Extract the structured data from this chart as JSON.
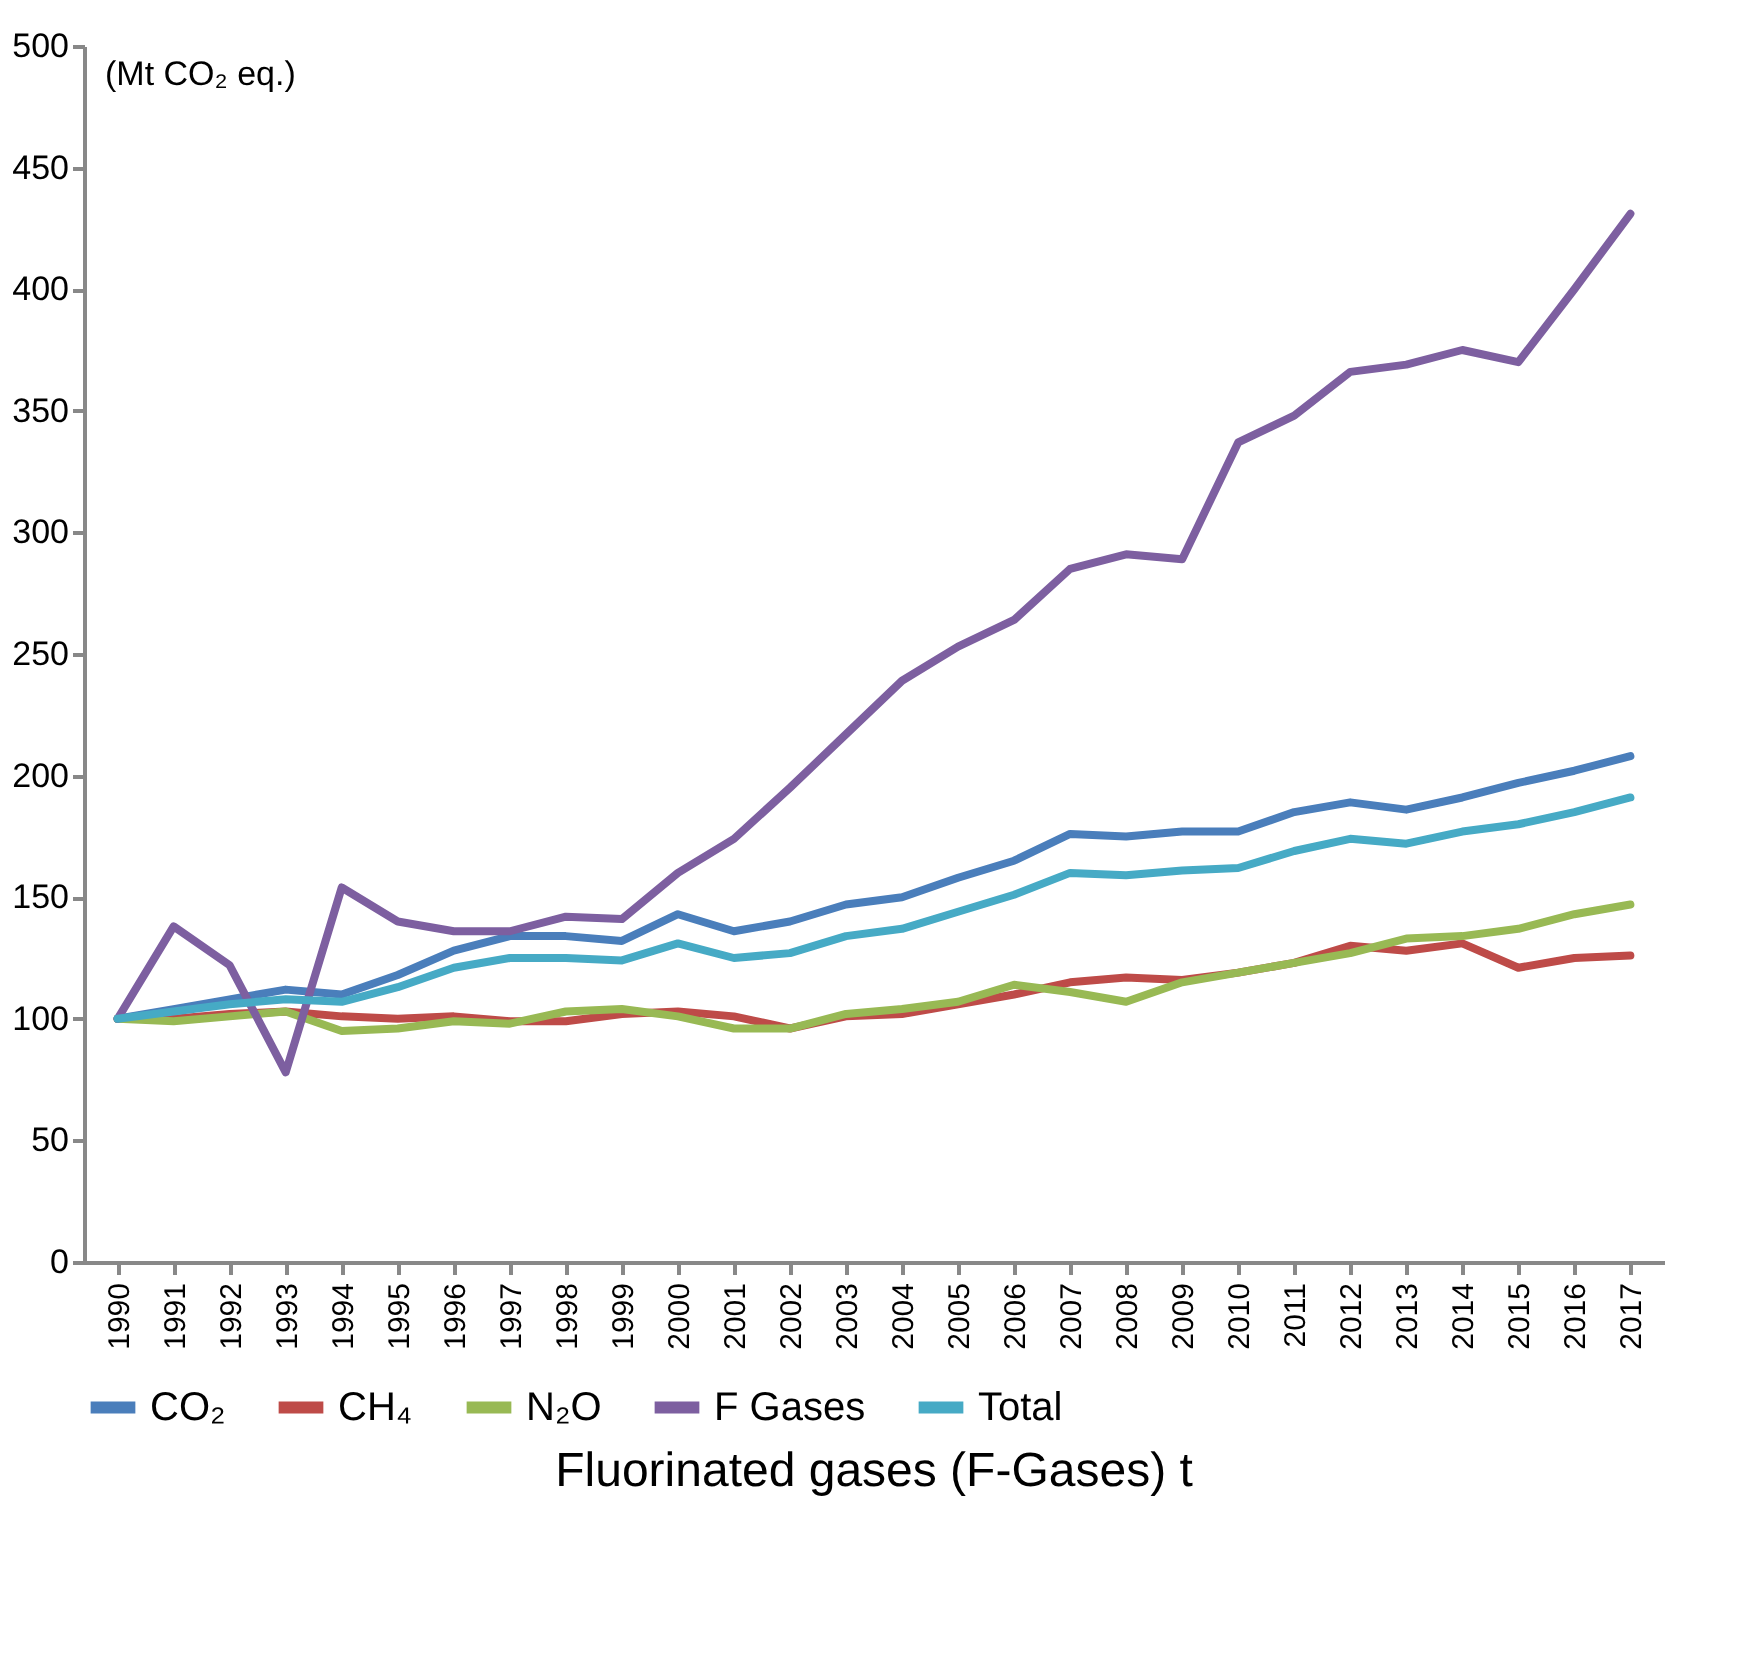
{
  "chart_data": {
    "type": "line",
    "title": "Fluorinated gases (F-Gases) t",
    "ylabel": "(Mt CO₂ eq.)",
    "categories": [
      "1990",
      "1991",
      "1992",
      "1993",
      "1994",
      "1995",
      "1996",
      "1997",
      "1998",
      "1999",
      "2000",
      "2001",
      "2002",
      "2003",
      "2004",
      "2005",
      "2006",
      "2007",
      "2008",
      "2009",
      "2010",
      "2011",
      "2012",
      "2013",
      "2014",
      "2015",
      "2016",
      "2017"
    ],
    "series": [
      {
        "name": "CO₂",
        "color": "#4a7ebb",
        "values": [
          100,
          104,
          108,
          112,
          110,
          118,
          128,
          134,
          134,
          132,
          143,
          136,
          140,
          147,
          150,
          158,
          165,
          176,
          175,
          177,
          177,
          185,
          189,
          186,
          191,
          197,
          202,
          208
        ]
      },
      {
        "name": "CH₄",
        "color": "#be4b48",
        "values": [
          100,
          100,
          102,
          103,
          101,
          100,
          101,
          99,
          99,
          102,
          103,
          101,
          96,
          101,
          102,
          106,
          110,
          115,
          117,
          116,
          119,
          123,
          130,
          128,
          131,
          121,
          125,
          126
        ]
      },
      {
        "name": "N₂O",
        "color": "#98b954",
        "values": [
          100,
          99,
          101,
          103,
          95,
          96,
          99,
          98,
          103,
          104,
          101,
          96,
          96,
          102,
          104,
          107,
          114,
          111,
          107,
          115,
          119,
          123,
          127,
          133,
          134,
          137,
          143,
          147
        ]
      },
      {
        "name": "F Gases",
        "color": "#7d5fa0",
        "values": [
          100,
          138,
          122,
          78,
          154,
          140,
          136,
          136,
          142,
          141,
          160,
          174,
          195,
          217,
          239,
          253,
          264,
          285,
          291,
          289,
          337,
          348,
          366,
          369,
          375,
          370,
          400,
          431
        ]
      },
      {
        "name": "Total",
        "color": "#46aac5",
        "values": [
          100,
          103,
          106,
          108,
          107,
          113,
          121,
          125,
          125,
          124,
          131,
          125,
          127,
          134,
          137,
          144,
          151,
          160,
          159,
          161,
          162,
          169,
          174,
          172,
          177,
          180,
          185,
          191
        ]
      }
    ],
    "ylim": [
      0,
      500
    ],
    "yticks": [
      0,
      50,
      100,
      150,
      200,
      250,
      300,
      350,
      400,
      450,
      500
    ],
    "grid": false,
    "legend": "bottom",
    "line_style": "solid",
    "marker": "none"
  }
}
